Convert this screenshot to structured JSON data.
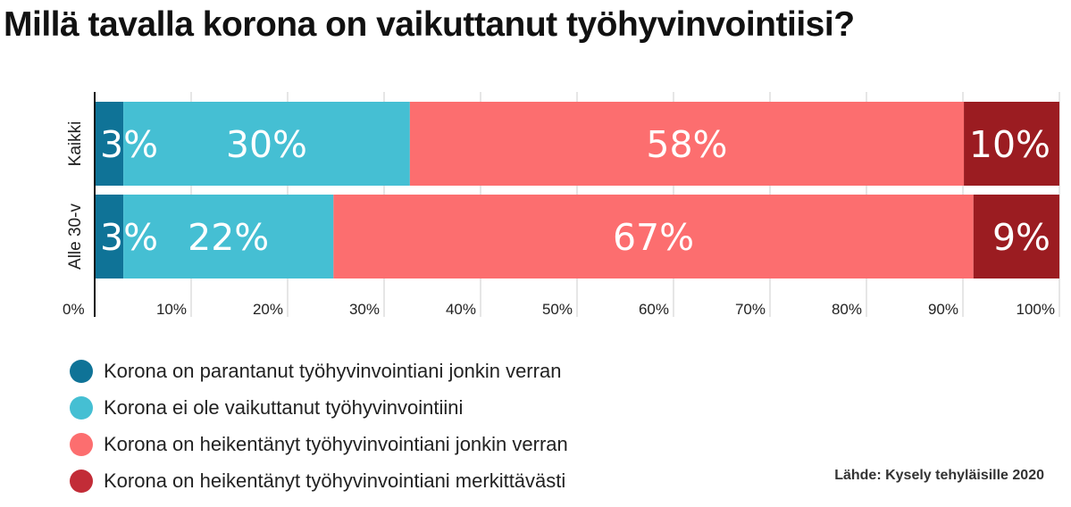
{
  "title": "Millä tavalla korona on vaikuttanut työhyvinvointiisi?",
  "source": "Lähde: Kysely tehyläisille 2020",
  "colors": {
    "improved": "#0f7397",
    "no_effect": "#45bfd3",
    "weakened_some": "#fc6e6f",
    "weakened_significantly": "#9b1c21",
    "axis": "#111111",
    "grid": "#cccccc"
  },
  "legend": [
    {
      "label": "Korona on parantanut työhyvinvointiani jonkin verran",
      "color": "#0f7397"
    },
    {
      "label": "Korona ei ole vaikuttanut työhyvinvointiini",
      "color": "#45bfd3"
    },
    {
      "label": "Korona on heikentänyt työhyvinvointiani jonkin verran",
      "color": "#fc6e6f"
    },
    {
      "label": "Korona on heikentänyt työhyvinvointiani merkittävästi",
      "color": "#c22c37"
    }
  ],
  "chart_data": {
    "type": "bar",
    "orientation": "horizontal",
    "stacked": true,
    "categories": [
      "Kaikki",
      "Alle 30-v"
    ],
    "series": [
      {
        "name": "Korona on parantanut työhyvinvointiani jonkin verran",
        "values": [
          3,
          3
        ],
        "color": "#0f7397"
      },
      {
        "name": "Korona ei ole vaikuttanut työhyvinvointiini",
        "values": [
          30,
          22
        ],
        "color": "#45bfd3"
      },
      {
        "name": "Korona on heikentänyt työhyvinvointiani jonkin verran",
        "values": [
          58,
          67
        ],
        "color": "#fc6e6f"
      },
      {
        "name": "Korona on heikentänyt työhyvinvointiani merkittävästi",
        "values": [
          10,
          9
        ],
        "color": "#9b1c21"
      }
    ],
    "data_labels": [
      [
        "3%",
        "30%",
        "58%",
        "10%"
      ],
      [
        "3%",
        "22%",
        "67%",
        "9%"
      ]
    ],
    "xlim": [
      0,
      100
    ],
    "xticks": [
      "0%",
      "10%",
      "20%",
      "30%",
      "40%",
      "50%",
      "60%",
      "70%",
      "80%",
      "90%",
      "100%"
    ],
    "title": "Millä tavalla korona on vaikuttanut työhyvinvointiisi?",
    "xlabel": "",
    "ylabel": "",
    "grid": true,
    "legend_position": "bottom-left"
  }
}
